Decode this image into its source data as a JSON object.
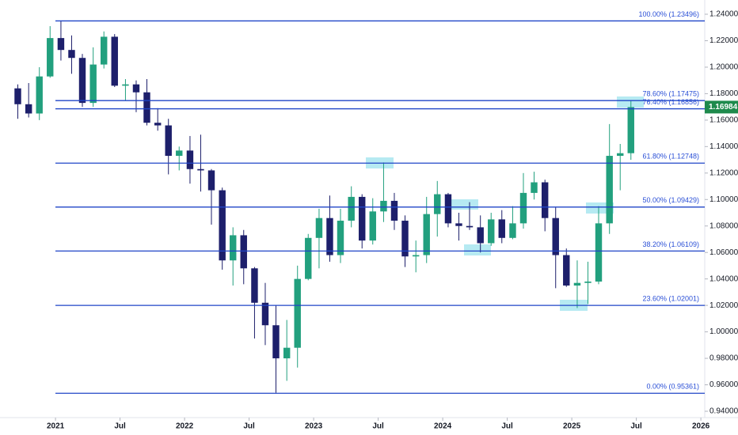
{
  "chart_data": {
    "type": "candlestick",
    "x": [
      2020.708,
      2020.792,
      2020.875,
      2020.958,
      2021.042,
      2021.125,
      2021.208,
      2021.292,
      2021.375,
      2021.458,
      2021.542,
      2021.625,
      2021.708,
      2021.792,
      2021.875,
      2021.958,
      2022.042,
      2022.125,
      2022.208,
      2022.292,
      2022.375,
      2022.458,
      2022.542,
      2022.625,
      2022.708,
      2022.792,
      2022.875,
      2022.958,
      2023.042,
      2023.125,
      2023.208,
      2023.292,
      2023.375,
      2023.458,
      2023.542,
      2023.625,
      2023.708,
      2023.792,
      2023.875,
      2023.958,
      2024.042,
      2024.125,
      2024.208,
      2024.292,
      2024.375,
      2024.458,
      2024.542,
      2024.625,
      2024.708,
      2024.792,
      2024.875,
      2024.958,
      2025.042,
      2025.125,
      2025.208,
      2025.292,
      2025.375,
      2025.458
    ],
    "open": [
      1.184,
      1.172,
      1.165,
      1.193,
      1.222,
      1.213,
      1.207,
      1.173,
      1.202,
      1.223,
      1.186,
      1.187,
      1.181,
      1.158,
      1.156,
      1.133,
      1.137,
      1.123,
      1.122,
      1.107,
      1.054,
      1.073,
      1.048,
      1.022,
      1.005,
      0.98,
      0.988,
      1.04,
      1.071,
      1.086,
      1.058,
      1.084,
      1.102,
      1.069,
      1.091,
      1.099,
      1.084,
      1.057,
      1.058,
      1.089,
      1.104,
      1.082,
      1.08,
      1.079,
      1.067,
      1.085,
      1.071,
      1.082,
      1.105,
      1.113,
      1.086,
      1.058,
      1.035,
      1.037,
      1.038,
      1.082,
      1.133,
      1.135
    ],
    "high": [
      1.187,
      1.188,
      1.2,
      1.231,
      1.235,
      1.224,
      1.21,
      1.215,
      1.227,
      1.225,
      1.191,
      1.19,
      1.191,
      1.169,
      1.161,
      1.14,
      1.148,
      1.149,
      1.123,
      1.109,
      1.079,
      1.077,
      1.049,
      1.037,
      1.02,
      1.009,
      1.05,
      1.074,
      1.093,
      1.103,
      1.093,
      1.11,
      1.104,
      1.101,
      1.128,
      1.105,
      1.088,
      1.069,
      1.102,
      1.114,
      1.105,
      1.09,
      1.098,
      1.088,
      1.09,
      1.092,
      1.095,
      1.12,
      1.121,
      1.115,
      1.094,
      1.063,
      1.054,
      1.053,
      1.095,
      1.157,
      1.142,
      1.175
    ],
    "low": [
      1.161,
      1.162,
      1.16,
      1.192,
      1.205,
      1.195,
      1.17,
      1.17,
      1.199,
      1.185,
      1.175,
      1.166,
      1.156,
      1.152,
      1.119,
      1.122,
      1.112,
      1.106,
      1.081,
      1.047,
      1.035,
      1.036,
      0.995,
      0.99,
      0.954,
      0.963,
      0.973,
      1.039,
      1.048,
      1.053,
      1.052,
      1.079,
      1.063,
      1.066,
      1.083,
      1.077,
      1.049,
      1.045,
      1.052,
      1.072,
      1.079,
      1.069,
      1.077,
      1.06,
      1.065,
      1.067,
      1.07,
      1.078,
      1.1,
      1.076,
      1.033,
      1.034,
      1.018,
      1.021,
      1.036,
      1.074,
      1.107,
      1.13
    ],
    "close": [
      1.172,
      1.165,
      1.193,
      1.222,
      1.213,
      1.207,
      1.173,
      1.202,
      1.223,
      1.186,
      1.187,
      1.181,
      1.158,
      1.156,
      1.133,
      1.137,
      1.123,
      1.122,
      1.107,
      1.054,
      1.073,
      1.048,
      1.022,
      1.005,
      0.98,
      0.988,
      1.04,
      1.071,
      1.086,
      1.058,
      1.084,
      1.102,
      1.069,
      1.091,
      1.099,
      1.084,
      1.057,
      1.058,
      1.089,
      1.104,
      1.082,
      1.08,
      1.079,
      1.067,
      1.085,
      1.071,
      1.082,
      1.105,
      1.113,
      1.086,
      1.058,
      1.035,
      1.037,
      1.038,
      1.082,
      1.133,
      1.135,
      1.16984
    ],
    "up_color": "#22a07e",
    "down_color": "#1d1f6b",
    "level_color": "#1f44c7",
    "levels": [
      {
        "label": "100.00% (1.23496)",
        "value": 1.23496
      },
      {
        "label": "78.60% (1.17475)",
        "value": 1.17475
      },
      {
        "label": "76.40% (1.16856)",
        "value": 1.16856
      },
      {
        "label": "61.80% (1.12748)",
        "value": 1.12748
      },
      {
        "label": "50.00% (1.09429)",
        "value": 1.09429
      },
      {
        "label": "38.20% (1.06109)",
        "value": 1.06109
      },
      {
        "label": "23.60% (1.02001)",
        "value": 1.02001
      },
      {
        "label": "0.00% (0.95361)",
        "value": 0.95361
      }
    ],
    "last_price": 1.16984,
    "last_price_color": "#1e8a4c",
    "xlim": [
      2020.57,
      2026.03
    ],
    "xticks": [
      {
        "value": 2021,
        "label": "2021"
      },
      {
        "value": 2021.5,
        "label": "Jul"
      },
      {
        "value": 2022,
        "label": "2022"
      },
      {
        "value": 2022.5,
        "label": "Jul"
      },
      {
        "value": 2023,
        "label": "2023"
      },
      {
        "value": 2023.5,
        "label": "Jul"
      },
      {
        "value": 2024,
        "label": "2024"
      },
      {
        "value": 2024.5,
        "label": "Jul"
      },
      {
        "value": 2025,
        "label": "2025"
      },
      {
        "value": 2025.5,
        "label": "Jul"
      },
      {
        "value": 2026,
        "label": "2026"
      }
    ],
    "ylim": [
      0.94,
      1.24
    ],
    "yticks": [
      {
        "value": 0.94,
        "label": "0.94000"
      },
      {
        "value": 0.96,
        "label": "0.96000"
      },
      {
        "value": 0.98,
        "label": "0.98000"
      },
      {
        "value": 1.0,
        "label": "1.00000"
      },
      {
        "value": 1.02,
        "label": "1.02000"
      },
      {
        "value": 1.04,
        "label": "1.04000"
      },
      {
        "value": 1.06,
        "label": "1.06000"
      },
      {
        "value": 1.08,
        "label": "1.08000"
      },
      {
        "value": 1.1,
        "label": "1.10000"
      },
      {
        "value": 1.12,
        "label": "1.12000"
      },
      {
        "value": 1.14,
        "label": "1.14000"
      },
      {
        "value": 1.16,
        "label": "1.16000"
      },
      {
        "value": 1.18,
        "label": "1.18000"
      },
      {
        "value": 1.2,
        "label": "1.20000"
      },
      {
        "value": 1.22,
        "label": "1.22000"
      },
      {
        "value": 1.24,
        "label": "1.24000"
      }
    ]
  }
}
